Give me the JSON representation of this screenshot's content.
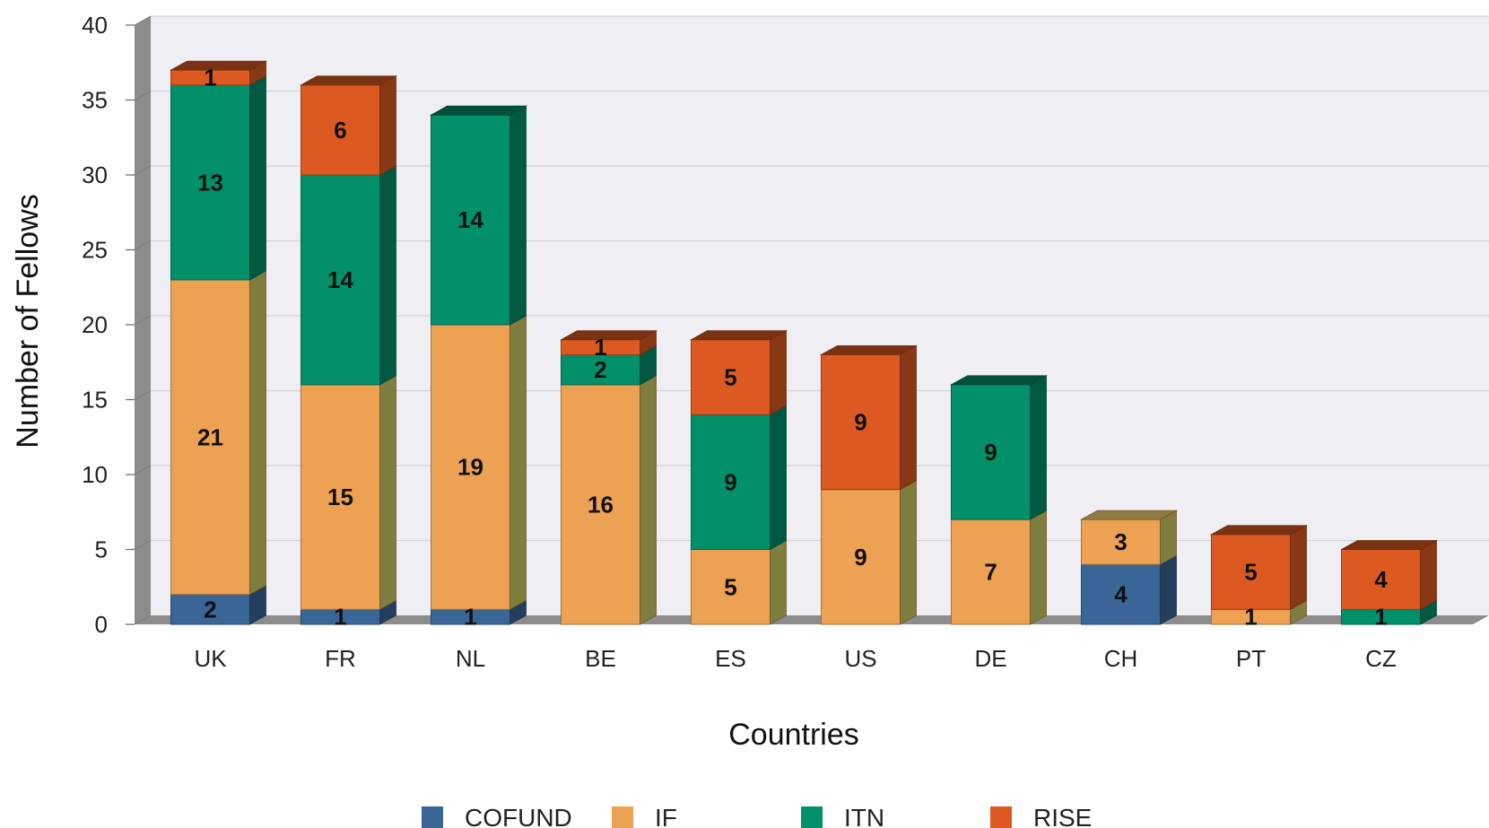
{
  "chart_data": {
    "type": "bar",
    "stacked": true,
    "three_d": true,
    "title": "",
    "xlabel": "Countries",
    "ylabel": "Number of Fellows",
    "ylim": [
      0,
      40
    ],
    "yticks": [
      0,
      5,
      10,
      15,
      20,
      25,
      30,
      35,
      40
    ],
    "grid": true,
    "legend_position": "bottom",
    "categories": [
      "UK",
      "FR",
      "NL",
      "BE",
      "ES",
      "US",
      "DE",
      "CH",
      "PT",
      "CZ"
    ],
    "series": [
      {
        "name": "COFUND",
        "color": "#3a6597",
        "values": [
          2,
          1,
          1,
          0,
          0,
          0,
          0,
          4,
          0,
          0
        ]
      },
      {
        "name": "IF",
        "color": "#eda152",
        "values": [
          21,
          15,
          19,
          16,
          5,
          9,
          7,
          3,
          1,
          0
        ]
      },
      {
        "name": "ITN",
        "color": "#02906a",
        "values": [
          13,
          14,
          14,
          2,
          9,
          0,
          9,
          0,
          0,
          1
        ]
      },
      {
        "name": "RISE",
        "color": "#dc5a21",
        "values": [
          1,
          6,
          0,
          1,
          5,
          9,
          0,
          0,
          5,
          4
        ]
      }
    ]
  }
}
